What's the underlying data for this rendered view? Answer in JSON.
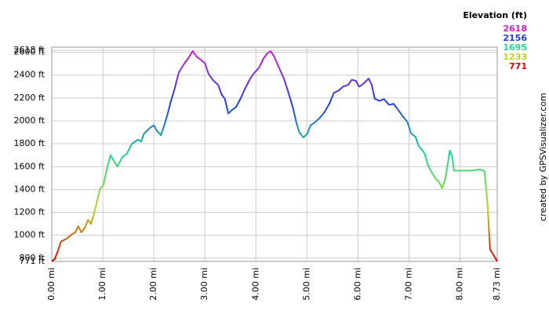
{
  "chart_data": {
    "type": "line",
    "x": [
      0,
      0.06,
      0.12,
      0.18,
      0.29,
      0.4,
      0.46,
      0.52,
      0.58,
      0.65,
      0.71,
      0.77,
      0.83,
      0.89,
      0.95,
      1.01,
      1.08,
      1.15,
      1.23,
      1.29,
      1.38,
      1.47,
      1.57,
      1.69,
      1.75,
      1.81,
      1.94,
      2.0,
      2.06,
      2.14,
      2.21,
      2.27,
      2.33,
      2.41,
      2.49,
      2.58,
      2.67,
      2.76,
      2.84,
      2.92,
      3.0,
      3.07,
      3.16,
      3.26,
      3.33,
      3.39,
      3.46,
      3.53,
      3.61,
      3.7,
      3.79,
      3.89,
      3.96,
      4.06,
      4.15,
      4.22,
      4.29,
      4.36,
      4.45,
      4.55,
      4.64,
      4.73,
      4.79,
      4.85,
      4.93,
      5.01,
      5.07,
      5.16,
      5.25,
      5.35,
      5.44,
      5.53,
      5.62,
      5.71,
      5.81,
      5.88,
      5.96,
      6.02,
      6.08,
      6.14,
      6.21,
      6.27,
      6.33,
      6.42,
      6.51,
      6.61,
      6.7,
      6.79,
      6.88,
      6.97,
      7.04,
      7.13,
      7.19,
      7.25,
      7.31,
      7.37,
      7.43,
      7.53,
      7.59,
      7.65,
      7.71,
      7.77,
      7.8,
      7.85,
      7.88,
      8.05,
      8.2,
      8.39,
      8.48,
      8.54,
      8.59,
      8.66,
      8.73
    ],
    "values": [
      771,
      793,
      862,
      944,
      970,
      1010,
      1025,
      1080,
      1025,
      1065,
      1135,
      1100,
      1190,
      1305,
      1410,
      1435,
      1580,
      1700,
      1640,
      1600,
      1685,
      1710,
      1800,
      1835,
      1820,
      1890,
      1945,
      1960,
      1915,
      1875,
      1970,
      2060,
      2165,
      2285,
      2425,
      2490,
      2545,
      2610,
      2560,
      2535,
      2505,
      2415,
      2355,
      2315,
      2230,
      2195,
      2065,
      2095,
      2120,
      2195,
      2285,
      2370,
      2415,
      2465,
      2545,
      2590,
      2610,
      2560,
      2470,
      2370,
      2245,
      2110,
      1990,
      1900,
      1855,
      1890,
      1960,
      1990,
      2025,
      2080,
      2150,
      2245,
      2265,
      2300,
      2315,
      2360,
      2350,
      2300,
      2315,
      2340,
      2370,
      2315,
      2195,
      2175,
      2190,
      2140,
      2150,
      2095,
      2040,
      1990,
      1890,
      1860,
      1780,
      1750,
      1710,
      1615,
      1560,
      1490,
      1465,
      1410,
      1490,
      1650,
      1740,
      1685,
      1565,
      1565,
      1565,
      1575,
      1560,
      1275,
      875,
      825,
      771
    ],
    "xlim": [
      0,
      8.73
    ],
    "ylim": [
      771,
      2618
    ],
    "xticks": [
      {
        "value": 0,
        "label": "0.00 mi"
      },
      {
        "value": 1,
        "label": "1.00 mi"
      },
      {
        "value": 2,
        "label": "2.00 mi"
      },
      {
        "value": 3,
        "label": "3.00 mi"
      },
      {
        "value": 4,
        "label": "4.00 mi"
      },
      {
        "value": 5,
        "label": "5.00 mi"
      },
      {
        "value": 6,
        "label": "6.00 mi"
      },
      {
        "value": 7,
        "label": "7.00 mi"
      },
      {
        "value": 8,
        "label": "8.00 mi"
      },
      {
        "value": 8.73,
        "label": "8.73 mi"
      }
    ],
    "yticks": [
      {
        "value": 771,
        "label": "771 ft"
      },
      {
        "value": 800,
        "label": "800 ft"
      },
      {
        "value": 1000,
        "label": "1000 ft"
      },
      {
        "value": 1200,
        "label": "1200 ft"
      },
      {
        "value": 1400,
        "label": "1400 ft"
      },
      {
        "value": 1600,
        "label": "1600 ft"
      },
      {
        "value": 1800,
        "label": "1800 ft"
      },
      {
        "value": 2000,
        "label": "2000 ft"
      },
      {
        "value": 2200,
        "label": "2200 ft"
      },
      {
        "value": 2400,
        "label": "2400 ft"
      },
      {
        "value": 2600,
        "label": "2600 ft"
      },
      {
        "value": 2618,
        "label": "2618 ft"
      }
    ],
    "grid": true,
    "legend": {
      "title": "Elevation (ft)",
      "entries": [
        {
          "value": 2618,
          "color": "#d020d0"
        },
        {
          "value": 2156,
          "color": "#2040e0"
        },
        {
          "value": 1695,
          "color": "#20d890"
        },
        {
          "value": 1233,
          "color": "#b8d820"
        },
        {
          "value": 771,
          "color": "#e00000"
        }
      ]
    },
    "credit": "created by GPSVisualizer.com"
  }
}
